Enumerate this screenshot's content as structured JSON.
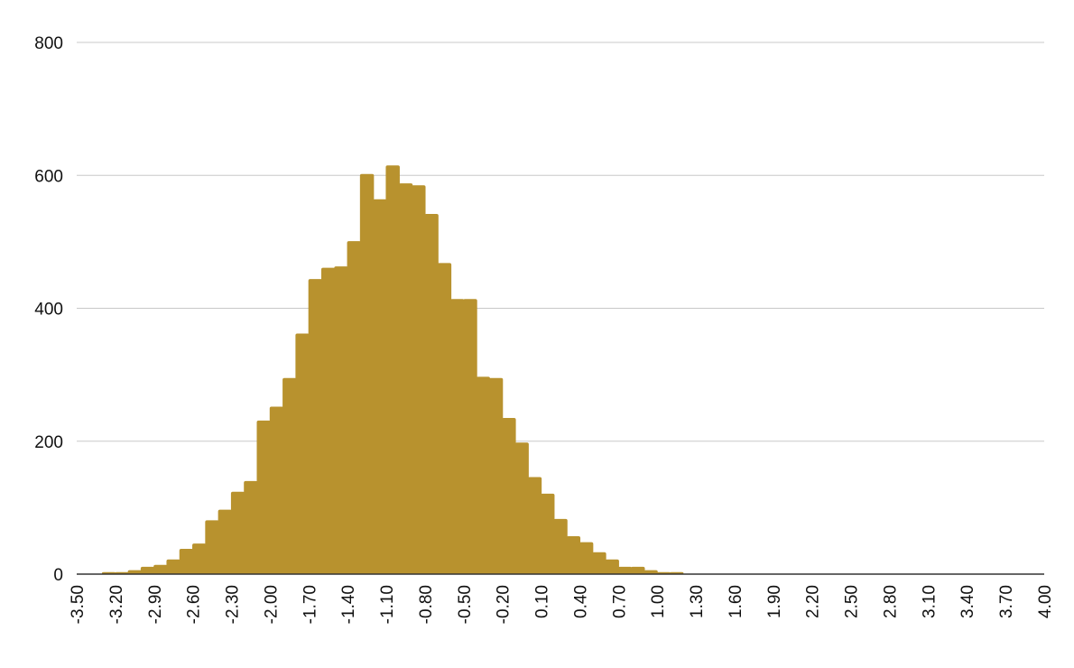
{
  "chart_data": {
    "type": "bar",
    "title": "",
    "xlabel": "",
    "ylabel": "",
    "ylim": [
      0,
      800
    ],
    "yticks": [
      0,
      200,
      400,
      600,
      800
    ],
    "grid": true,
    "legend": "none",
    "bar_color": "#b8922e",
    "x_tick_labels": [
      "-3.50",
      "-3.20",
      "-2.90",
      "-2.60",
      "-2.30",
      "-2.00",
      "-1.70",
      "-1.40",
      "-1.10",
      "-0.80",
      "-0.50",
      "-0.20",
      "0.10",
      "0.40",
      "0.70",
      "1.00",
      "1.30",
      "1.60",
      "1.90",
      "2.20",
      "2.50",
      "2.80",
      "3.10",
      "3.40",
      "3.70",
      "4.00"
    ],
    "x": [
      -3.4,
      -3.3,
      -3.2,
      -3.1,
      -3.0,
      -2.9,
      -2.8,
      -2.7,
      -2.6,
      -2.5,
      -2.4,
      -2.3,
      -2.2,
      -2.1,
      -2.0,
      -1.9,
      -1.8,
      -1.7,
      -1.6,
      -1.5,
      -1.4,
      -1.3,
      -1.2,
      -1.1,
      -1.0,
      -0.9,
      -0.8,
      -0.7,
      -0.6,
      -0.5,
      -0.4,
      -0.3,
      -0.2,
      -0.1,
      0.0,
      0.1,
      0.2,
      0.3,
      0.4,
      0.5,
      0.6,
      0.7,
      0.8,
      0.9,
      1.0,
      1.1,
      1.2,
      1.3,
      1.4,
      1.5,
      1.6,
      1.7,
      1.8,
      1.9,
      2.0,
      2.1,
      2.2,
      2.3,
      2.4,
      2.5,
      2.6,
      2.7,
      2.8,
      2.9,
      3.0,
      3.1,
      3.2,
      3.3,
      3.4,
      3.5,
      3.6,
      3.7,
      3.8,
      3.9,
      4.0
    ],
    "values": [
      0,
      0,
      3,
      3,
      6,
      11,
      14,
      22,
      38,
      46,
      81,
      97,
      124,
      140,
      231,
      252,
      295,
      362,
      444,
      461,
      463,
      501,
      602,
      564,
      615,
      588,
      585,
      542,
      468,
      414,
      414,
      297,
      295,
      235,
      198,
      146,
      121,
      83,
      57,
      48,
      33,
      22,
      11,
      11,
      6,
      3,
      3,
      0,
      0,
      0,
      0,
      0,
      0,
      0,
      0,
      0,
      0,
      0,
      0,
      0,
      0,
      0,
      0,
      0,
      0,
      0,
      0,
      0,
      0,
      0,
      0,
      0,
      0,
      0,
      0
    ]
  }
}
